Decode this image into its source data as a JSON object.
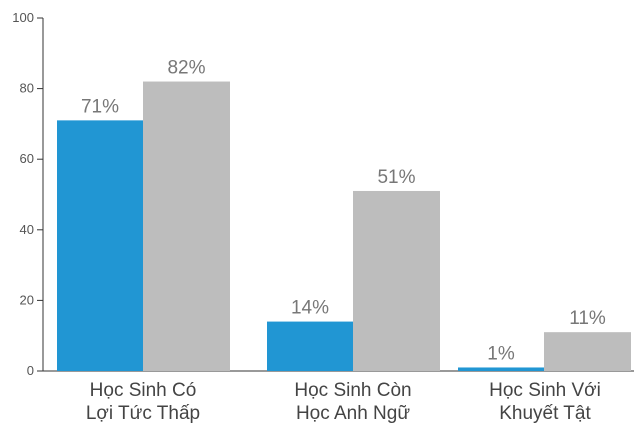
{
  "chart_data": {
    "type": "bar",
    "categories": [
      [
        "Học Sinh Có",
        "Lợi Tức Thấp"
      ],
      [
        "Học Sinh Còn",
        "Học Anh Ngữ"
      ],
      [
        "Học Sinh Với",
        "Khuyết Tật"
      ]
    ],
    "series": [
      {
        "values": [
          71,
          14,
          1
        ],
        "labels": [
          "71%",
          "14%",
          "1%"
        ],
        "color": "#2196d3"
      },
      {
        "values": [
          82,
          51,
          11
        ],
        "labels": [
          "82%",
          "51%",
          "11%"
        ],
        "color": "#bdbdbd"
      }
    ],
    "ylim": [
      0,
      100
    ],
    "yticks": [
      "0",
      "20",
      "40",
      "60",
      "80",
      "100"
    ],
    "grid": false,
    "legend": "none"
  }
}
